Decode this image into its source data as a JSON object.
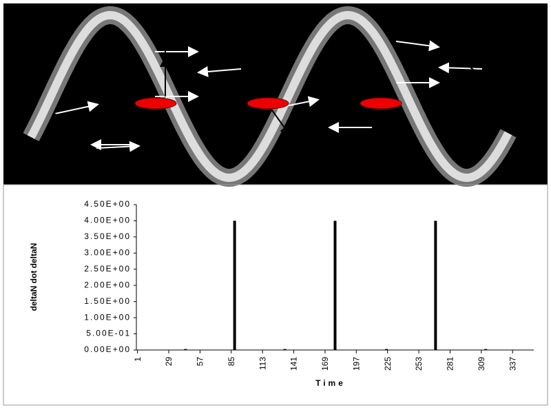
{
  "chart_data": {
    "type": "bar",
    "x": [
      44,
      88,
      133,
      178,
      224,
      268,
      313
    ],
    "values": [
      0.03,
      4.0,
      0.03,
      4.0,
      0.03,
      4.0,
      0.03
    ],
    "color": "#000000",
    "xlim": [
      0,
      356
    ],
    "xticks": [
      1,
      29,
      57,
      85,
      113,
      141,
      169,
      197,
      225,
      253,
      281,
      309,
      337
    ],
    "ylim": [
      0,
      4.5
    ],
    "yticks": [
      {
        "value": 0,
        "label": "0.00E+00"
      },
      {
        "value": 0.5,
        "label": "5.00E-01"
      },
      {
        "value": 1,
        "label": "1.00E+00"
      },
      {
        "value": 1.5,
        "label": "1.50E+00"
      },
      {
        "value": 2,
        "label": "2.00E+00"
      },
      {
        "value": 2.5,
        "label": "2.50E+00"
      },
      {
        "value": 3,
        "label": "3.00E+00"
      },
      {
        "value": 3.5,
        "label": "3.50E+00"
      },
      {
        "value": 4,
        "label": "4.00E+00"
      },
      {
        "value": 4.5,
        "label": "4.50E+00"
      }
    ],
    "x_label": "Time",
    "y_label": "deltaN dot deltaN"
  }
}
